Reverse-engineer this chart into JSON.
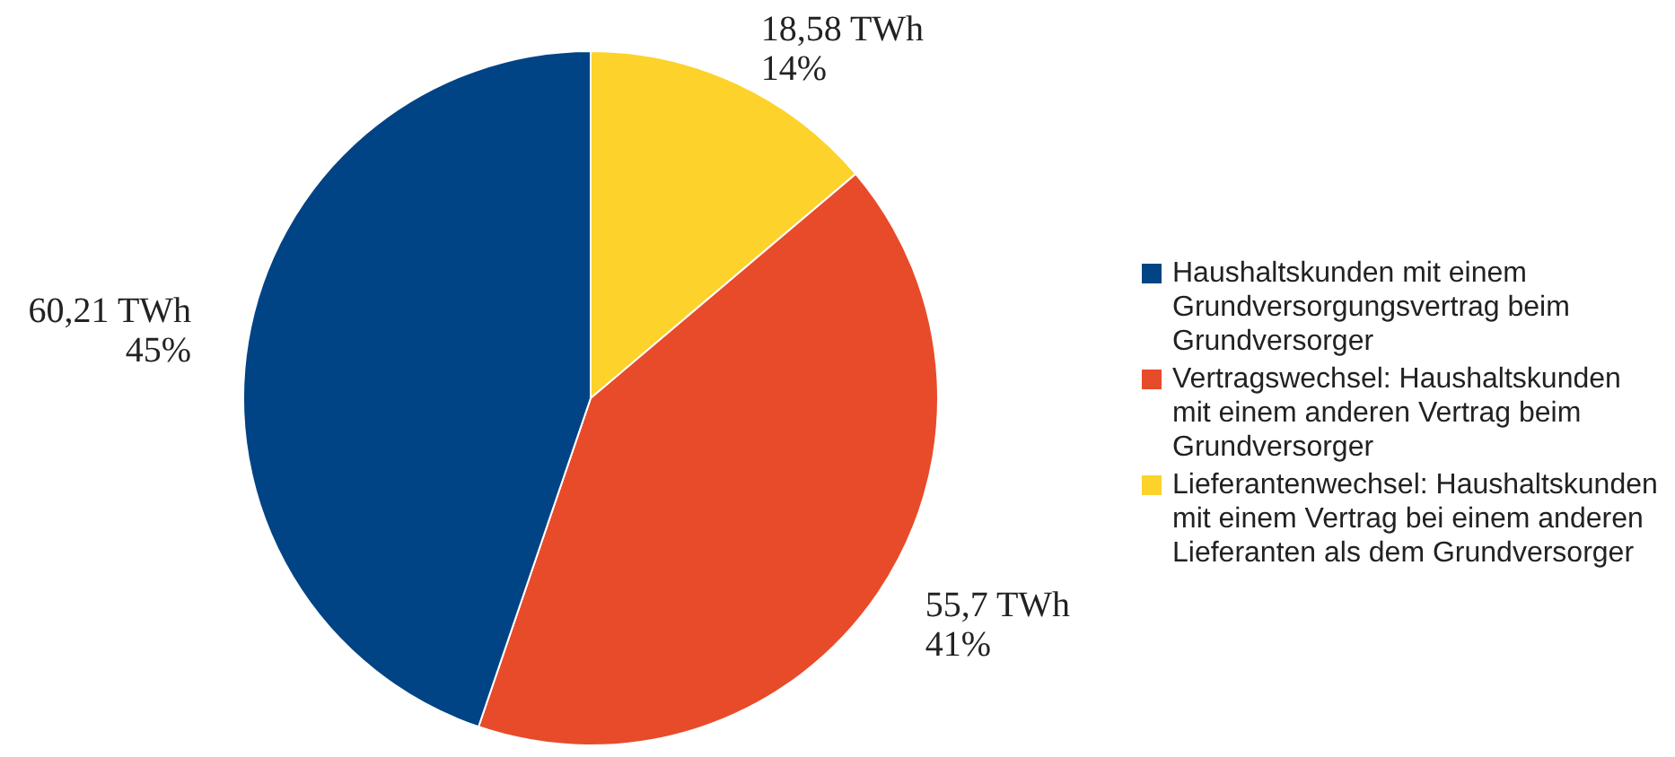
{
  "chart_data": {
    "type": "pie",
    "categories": [
      "Haushaltskunden mit einem Grundversorgungsvertrag beim Grundversorger",
      "Vertragswechsel: Haushaltskunden mit einem anderen Vertrag beim Grundversorger",
      "Lieferantenwechsel: Haushaltskunden mit einem Vertrag bei einem anderen Lieferanten als dem Grundversorger"
    ],
    "values": [
      60.21,
      55.7,
      18.58
    ],
    "value_labels": [
      "60,21 TWh\n45%",
      "55,7 TWh\n41%",
      "18,58 TWh\n14%"
    ],
    "colors": [
      "#004485",
      "#e84b2a",
      "#fdd22a"
    ],
    "legend": "right"
  }
}
